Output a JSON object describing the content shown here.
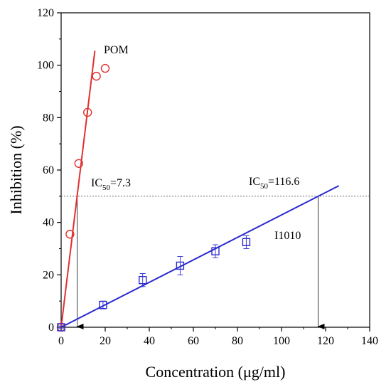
{
  "chart_data": {
    "type": "scatter",
    "xlabel": "Concentration (μg/ml)",
    "ylabel": "Inhibition (%)",
    "xlim": [
      0,
      140
    ],
    "ylim": [
      0,
      120
    ],
    "xticks": [
      0,
      20,
      40,
      60,
      80,
      100,
      120,
      140
    ],
    "yticks": [
      0,
      20,
      40,
      60,
      80,
      100,
      120
    ],
    "grid": false,
    "series": [
      {
        "name": "POM",
        "marker": "circle",
        "color": "#e03030",
        "x": [
          0,
          4,
          8,
          12,
          16,
          20
        ],
        "y": [
          0,
          35.5,
          62.5,
          82,
          95.8,
          98.8
        ],
        "fit_line": {
          "x": [
            0,
            15.3
          ],
          "y": [
            0,
            105.5
          ]
        }
      },
      {
        "name": "I1010",
        "marker": "square",
        "color": "#2a2ad0",
        "x": [
          0,
          19,
          37,
          54,
          70,
          84
        ],
        "y": [
          0,
          8.5,
          18,
          23.5,
          29,
          32.5
        ],
        "error": [
          0.5,
          1.5,
          2.5,
          3.5,
          2.5,
          2.5
        ],
        "fit_line": {
          "x": [
            0,
            126
          ],
          "y": [
            0,
            54
          ]
        }
      }
    ],
    "reference_line": {
      "y": 50
    },
    "ic50_markers": [
      {
        "x": 7.3,
        "label_base": "IC",
        "label_sub": "50",
        "label_value": "=7.3"
      },
      {
        "x": 116.6,
        "label_base": "IC",
        "label_sub": "50",
        "label_value": "=116.6"
      }
    ],
    "labels": {
      "pom": "POM",
      "i1010": "I1010"
    }
  }
}
